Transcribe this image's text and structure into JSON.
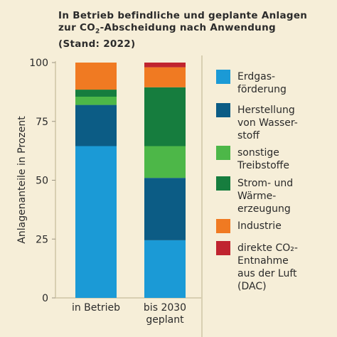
{
  "title": {
    "line1": "In Betrieb befindliche und geplante Anlagen",
    "line2_pre": "zur CO",
    "line2_sub": "2",
    "line2_post": "-Abscheidung nach Anwendung",
    "line3": "(Stand: 2022)"
  },
  "chart_data": {
    "type": "bar",
    "stacked": true,
    "title": "In Betrieb befindliche und geplante Anlagen zur CO2-Abscheidung nach Anwendung (Stand: 2022)",
    "ylabel": "Anlagenanteile in Prozent",
    "xlabel": "",
    "ylim": [
      0,
      100
    ],
    "yticks": [
      0,
      25,
      50,
      75,
      100
    ],
    "grid": false,
    "legend_position": "right",
    "categories": [
      {
        "lines": [
          "in Betrieb"
        ]
      },
      {
        "lines": [
          "bis 2030",
          "geplant"
        ]
      }
    ],
    "series": [
      {
        "name": "Erdgasförderung",
        "legend_lines": [
          "Erdgas-",
          "förderung"
        ],
        "color": "#1b9ad6",
        "values": [
          64.5,
          24.5
        ]
      },
      {
        "name": "Herstellung von Wasserstoff",
        "legend_lines": [
          "Herstellung",
          "von Wasser-",
          "stoff"
        ],
        "color": "#0c5c85",
        "values": [
          17.5,
          26.5
        ]
      },
      {
        "name": "sonstige Treibstoffe",
        "legend_lines": [
          "sonstige",
          "Treibstoffe"
        ],
        "color": "#4db748",
        "values": [
          3.5,
          13.5
        ]
      },
      {
        "name": "Strom- und Wärmeerzeugung",
        "legend_lines": [
          "Strom- und",
          "Wärme-",
          "erzeugung"
        ],
        "color": "#167d3e",
        "values": [
          3.0,
          25.0
        ]
      },
      {
        "name": "Industrie",
        "legend_lines": [
          "Industrie"
        ],
        "color": "#f07a22",
        "values": [
          11.5,
          8.5
        ]
      },
      {
        "name": "direkte CO2-Entnahme aus der Luft (DAC)",
        "legend_lines": [
          "direkte CO₂-",
          "Entnahme",
          "aus der Luft",
          "(DAC)"
        ],
        "color": "#c0242f",
        "values": [
          0,
          2.0
        ]
      }
    ]
  }
}
